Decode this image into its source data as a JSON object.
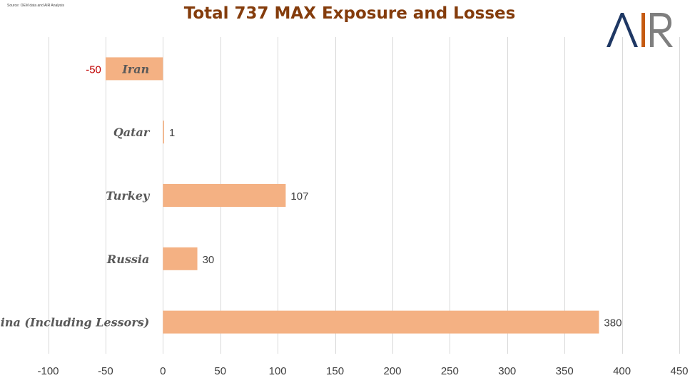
{
  "source_note": "Source: OEM data and AIR Analysis",
  "logo": {
    "text": "AIR",
    "colors": {
      "A": "#1F3864",
      "I": "#C55A11",
      "R": "#7F7F7F"
    }
  },
  "chart_data": {
    "type": "bar",
    "orientation": "horizontal",
    "title": "Total 737 MAX Exposure and Losses",
    "categories": [
      "Iran",
      "Qatar",
      "Turkey",
      "Russia",
      "China (Including Lessors)"
    ],
    "values": [
      -50,
      1,
      107,
      30,
      380
    ],
    "data_labels": [
      "-50",
      "1",
      "107",
      "30",
      "380"
    ],
    "xlim": [
      -100,
      450
    ],
    "xticks": [
      -100,
      -50,
      0,
      50,
      100,
      150,
      200,
      250,
      300,
      350,
      400,
      450
    ],
    "tick_labels": [
      "-100",
      "-50",
      "0",
      "50",
      "100",
      "150",
      "200",
      "250",
      "300",
      "350",
      "400",
      "450"
    ],
    "grid": true,
    "legend": "none",
    "bar_color": "#F4B183",
    "negative_label_color": "#C00000",
    "title_color": "#843C0C"
  }
}
